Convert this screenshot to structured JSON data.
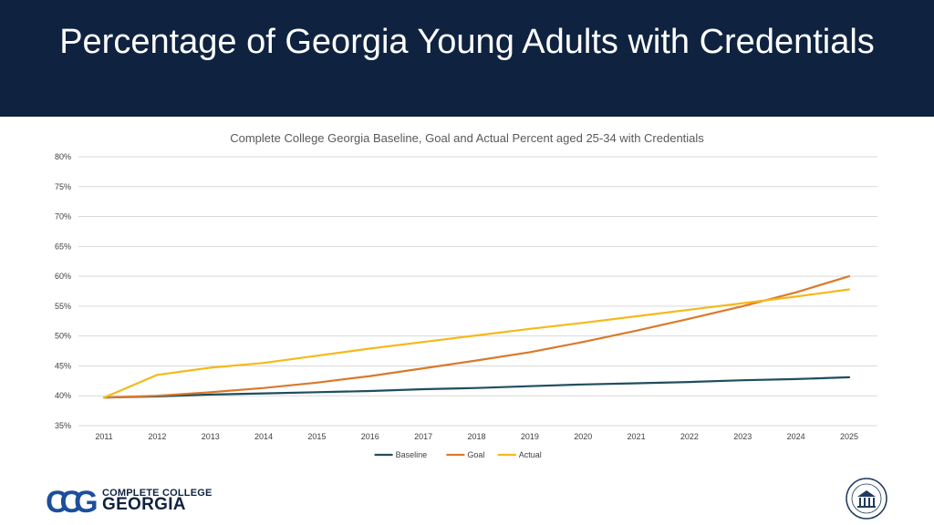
{
  "header": {
    "title": "Percentage of Georgia Young Adults with Credentials"
  },
  "colors": {
    "header_bg": "#0f2340",
    "baseline": "#1f4e5f",
    "goal": "#d97a2b",
    "actual": "#f5b919",
    "grid": "#d9d9d9",
    "axis_text": "#404040"
  },
  "chart_data": {
    "type": "line",
    "title": "Complete College Georgia Baseline, Goal and Actual Percent aged 25-34 with Credentials",
    "xlabel": "",
    "ylabel": "",
    "x": [
      "2011",
      "2012",
      "2013",
      "2014",
      "2015",
      "2016",
      "2017",
      "2018",
      "2019",
      "2020",
      "2021",
      "2022",
      "2023",
      "2024",
      "2025"
    ],
    "ylim": [
      35,
      80
    ],
    "yticks": [
      35,
      40,
      45,
      50,
      55,
      60,
      65,
      70,
      75,
      80
    ],
    "ytick_labels": [
      "35%",
      "40%",
      "45%",
      "50%",
      "55%",
      "60%",
      "65%",
      "70%",
      "75%",
      "80%"
    ],
    "grid": true,
    "legend_position": "bottom-center",
    "series": [
      {
        "name": "Baseline",
        "color": "#1f4e5f",
        "values": [
          39.7,
          39.9,
          40.2,
          40.4,
          40.6,
          40.8,
          41.1,
          41.3,
          41.6,
          41.9,
          42.1,
          42.3,
          42.6,
          42.8,
          43.1
        ]
      },
      {
        "name": "Goal",
        "color": "#d97a2b",
        "values": [
          39.7,
          40.0,
          40.6,
          41.3,
          42.2,
          43.3,
          44.6,
          45.9,
          47.3,
          49.0,
          50.9,
          52.9,
          55.0,
          57.3,
          60.0
        ]
      },
      {
        "name": "Actual",
        "color": "#f5b919",
        "values": [
          39.7,
          43.5,
          44.7,
          45.5,
          46.7,
          47.9,
          49.0,
          50.1,
          51.2,
          52.2,
          53.3,
          54.4,
          55.5,
          56.6,
          57.8
        ]
      }
    ]
  },
  "footer": {
    "logo_line1": "COMPLETE COLLEGE",
    "logo_line2": "GEORGIA",
    "logo_mark": "CCG",
    "seal_label": "University System of Georgia seal"
  }
}
